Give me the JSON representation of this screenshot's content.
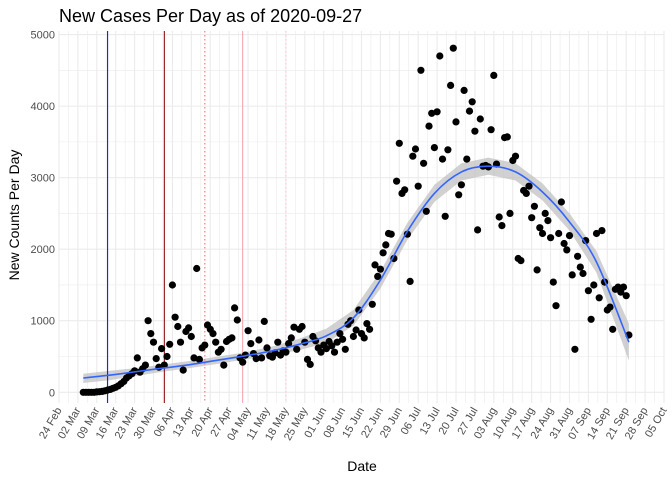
{
  "chart_data": {
    "type": "scatter",
    "title": "New Cases Per Day as of 2020-09-27",
    "xlabel": "Date",
    "ylabel": "New Counts Per Day",
    "x_tick_labels": [
      "24 Feb",
      "02 Mar",
      "09 Mar",
      "16 Mar",
      "23 Mar",
      "30 Mar",
      "06 Apr",
      "13 Apr",
      "20 Apr",
      "27 Apr",
      "04 May",
      "11 May",
      "18 May",
      "25 May",
      "01 Jun",
      "08 Jun",
      "15 Jun",
      "22 Jun",
      "29 Jun",
      "06 Jul",
      "13 Jul",
      "20 Jul",
      "27 Jul",
      "03 Aug",
      "10 Aug",
      "17 Aug",
      "24 Aug",
      "31 Aug",
      "07 Sep",
      "14 Sep",
      "21 Sep",
      "28 Sep",
      "05 Oct"
    ],
    "x_range": [
      "2020-02-24",
      "2020-10-05"
    ],
    "y_ticks": [
      0,
      1000,
      2000,
      3000,
      4000,
      5000
    ],
    "ylim": [
      -150,
      5050
    ],
    "grid": true,
    "colors": {
      "points": "#000000",
      "smooth_line": "#3366ff",
      "ribbon": "#bdbdbd",
      "line_blue": "#0000ff",
      "line_darkred": "#8b0000",
      "line_red_dotted": "#e8696b",
      "line_pink": "#f4a0a8",
      "line_pink_dotted": "#f7c6cf",
      "grid": "#ebebeb"
    },
    "vertical_lines": [
      {
        "date": "2020-03-13",
        "style": "solid",
        "color": "#0000ff"
      },
      {
        "date": "2020-04-03",
        "style": "solid",
        "color": "#8b0000"
      },
      {
        "date": "2020-04-18",
        "style": "dotted",
        "color": "#e8696b"
      },
      {
        "date": "2020-05-02",
        "style": "solid",
        "color": "#f4a0a8"
      },
      {
        "date": "2020-05-18",
        "style": "dotted",
        "color": "#f7c6cf"
      }
    ],
    "series": [
      {
        "type": "scatter",
        "points": [
          [
            "2020-03-04",
            0
          ],
          [
            "2020-03-05",
            0
          ],
          [
            "2020-03-06",
            0
          ],
          [
            "2020-03-07",
            0
          ],
          [
            "2020-03-08",
            0
          ],
          [
            "2020-03-09",
            5
          ],
          [
            "2020-03-10",
            8
          ],
          [
            "2020-03-11",
            12
          ],
          [
            "2020-03-12",
            20
          ],
          [
            "2020-03-13",
            30
          ],
          [
            "2020-03-14",
            40
          ],
          [
            "2020-03-15",
            55
          ],
          [
            "2020-03-16",
            70
          ],
          [
            "2020-03-17",
            90
          ],
          [
            "2020-03-18",
            120
          ],
          [
            "2020-03-19",
            150
          ],
          [
            "2020-03-20",
            200
          ],
          [
            "2020-03-21",
            230
          ],
          [
            "2020-03-22",
            260
          ],
          [
            "2020-03-23",
            300
          ],
          [
            "2020-03-24",
            480
          ],
          [
            "2020-03-25",
            280
          ],
          [
            "2020-03-26",
            330
          ],
          [
            "2020-03-27",
            380
          ],
          [
            "2020-03-28",
            1000
          ],
          [
            "2020-03-29",
            820
          ],
          [
            "2020-03-30",
            700
          ],
          [
            "2020-03-31",
            470
          ],
          [
            "2020-04-01",
            350
          ],
          [
            "2020-04-02",
            610
          ],
          [
            "2020-04-03",
            380
          ],
          [
            "2020-04-04",
            500
          ],
          [
            "2020-04-05",
            670
          ],
          [
            "2020-04-06",
            1500
          ],
          [
            "2020-04-07",
            1050
          ],
          [
            "2020-04-08",
            920
          ],
          [
            "2020-04-09",
            700
          ],
          [
            "2020-04-10",
            310
          ],
          [
            "2020-04-11",
            850
          ],
          [
            "2020-04-12",
            900
          ],
          [
            "2020-04-13",
            780
          ],
          [
            "2020-04-14",
            480
          ],
          [
            "2020-04-15",
            1730
          ],
          [
            "2020-04-16",
            460
          ],
          [
            "2020-04-17",
            620
          ],
          [
            "2020-04-18",
            660
          ],
          [
            "2020-04-19",
            940
          ],
          [
            "2020-04-20",
            880
          ],
          [
            "2020-04-21",
            820
          ],
          [
            "2020-04-22",
            700
          ],
          [
            "2020-04-23",
            560
          ],
          [
            "2020-04-24",
            600
          ],
          [
            "2020-04-25",
            380
          ],
          [
            "2020-04-26",
            710
          ],
          [
            "2020-04-27",
            740
          ],
          [
            "2020-04-28",
            760
          ],
          [
            "2020-04-29",
            1180
          ],
          [
            "2020-04-30",
            1010
          ],
          [
            "2020-05-01",
            480
          ],
          [
            "2020-05-02",
            420
          ],
          [
            "2020-05-03",
            520
          ],
          [
            "2020-05-04",
            860
          ],
          [
            "2020-05-05",
            680
          ],
          [
            "2020-05-06",
            540
          ],
          [
            "2020-05-07",
            470
          ],
          [
            "2020-05-08",
            730
          ],
          [
            "2020-05-09",
            480
          ],
          [
            "2020-05-10",
            990
          ],
          [
            "2020-05-11",
            620
          ],
          [
            "2020-05-12",
            510
          ],
          [
            "2020-05-13",
            490
          ],
          [
            "2020-05-14",
            550
          ],
          [
            "2020-05-15",
            700
          ],
          [
            "2020-05-16",
            520
          ],
          [
            "2020-05-17",
            580
          ],
          [
            "2020-05-18",
            560
          ],
          [
            "2020-05-19",
            680
          ],
          [
            "2020-05-20",
            760
          ],
          [
            "2020-05-21",
            910
          ],
          [
            "2020-05-22",
            600
          ],
          [
            "2020-05-23",
            880
          ],
          [
            "2020-05-24",
            920
          ],
          [
            "2020-05-25",
            700
          ],
          [
            "2020-05-26",
            460
          ],
          [
            "2020-05-27",
            390
          ],
          [
            "2020-05-28",
            780
          ],
          [
            "2020-05-29",
            720
          ],
          [
            "2020-05-30",
            620
          ],
          [
            "2020-05-31",
            560
          ],
          [
            "2020-06-01",
            660
          ],
          [
            "2020-06-02",
            610
          ],
          [
            "2020-06-03",
            710
          ],
          [
            "2020-06-04",
            650
          ],
          [
            "2020-06-05",
            560
          ],
          [
            "2020-06-06",
            700
          ],
          [
            "2020-06-07",
            820
          ],
          [
            "2020-06-08",
            740
          ],
          [
            "2020-06-09",
            600
          ],
          [
            "2020-06-10",
            950
          ],
          [
            "2020-06-11",
            1000
          ],
          [
            "2020-06-12",
            780
          ],
          [
            "2020-06-13",
            870
          ],
          [
            "2020-06-14",
            1150
          ],
          [
            "2020-06-15",
            820
          ],
          [
            "2020-06-16",
            760
          ],
          [
            "2020-06-17",
            960
          ],
          [
            "2020-06-18",
            880
          ],
          [
            "2020-06-19",
            1230
          ],
          [
            "2020-06-20",
            1780
          ],
          [
            "2020-06-21",
            1620
          ],
          [
            "2020-06-22",
            1720
          ],
          [
            "2020-06-23",
            1950
          ],
          [
            "2020-06-24",
            2060
          ],
          [
            "2020-06-25",
            2220
          ],
          [
            "2020-06-26",
            2210
          ],
          [
            "2020-06-27",
            1870
          ],
          [
            "2020-06-28",
            2950
          ],
          [
            "2020-06-29",
            3480
          ],
          [
            "2020-06-30",
            2780
          ],
          [
            "2020-07-01",
            2830
          ],
          [
            "2020-07-02",
            2210
          ],
          [
            "2020-07-03",
            1550
          ],
          [
            "2020-07-04",
            3300
          ],
          [
            "2020-07-05",
            3400
          ],
          [
            "2020-07-06",
            2880
          ],
          [
            "2020-07-07",
            4500
          ],
          [
            "2020-07-08",
            3200
          ],
          [
            "2020-07-09",
            2530
          ],
          [
            "2020-07-10",
            3720
          ],
          [
            "2020-07-11",
            3900
          ],
          [
            "2020-07-12",
            3420
          ],
          [
            "2020-07-13",
            3920
          ],
          [
            "2020-07-14",
            4700
          ],
          [
            "2020-07-15",
            3260
          ],
          [
            "2020-07-16",
            2460
          ],
          [
            "2020-07-17",
            3390
          ],
          [
            "2020-07-18",
            4290
          ],
          [
            "2020-07-19",
            4810
          ],
          [
            "2020-07-20",
            3780
          ],
          [
            "2020-07-21",
            2760
          ],
          [
            "2020-07-22",
            2900
          ],
          [
            "2020-07-23",
            4220
          ],
          [
            "2020-07-24",
            3260
          ],
          [
            "2020-07-25",
            3930
          ],
          [
            "2020-07-26",
            4060
          ],
          [
            "2020-07-27",
            3650
          ],
          [
            "2020-07-28",
            2270
          ],
          [
            "2020-07-29",
            3820
          ],
          [
            "2020-07-30",
            3160
          ],
          [
            "2020-07-31",
            3170
          ],
          [
            "2020-08-01",
            3150
          ],
          [
            "2020-08-02",
            3670
          ],
          [
            "2020-08-03",
            4430
          ],
          [
            "2020-08-04",
            3190
          ],
          [
            "2020-08-05",
            2450
          ],
          [
            "2020-08-06",
            2330
          ],
          [
            "2020-08-07",
            3560
          ],
          [
            "2020-08-08",
            3570
          ],
          [
            "2020-08-09",
            2500
          ],
          [
            "2020-08-10",
            3240
          ],
          [
            "2020-08-11",
            3300
          ],
          [
            "2020-08-12",
            1870
          ],
          [
            "2020-08-13",
            1840
          ],
          [
            "2020-08-14",
            2820
          ],
          [
            "2020-08-15",
            2780
          ],
          [
            "2020-08-16",
            2880
          ],
          [
            "2020-08-17",
            2440
          ],
          [
            "2020-08-18",
            2600
          ],
          [
            "2020-08-19",
            1710
          ],
          [
            "2020-08-20",
            2300
          ],
          [
            "2020-08-21",
            2220
          ],
          [
            "2020-08-22",
            2500
          ],
          [
            "2020-08-23",
            2400
          ],
          [
            "2020-08-24",
            2160
          ],
          [
            "2020-08-25",
            1540
          ],
          [
            "2020-08-26",
            1210
          ],
          [
            "2020-08-27",
            2220
          ],
          [
            "2020-08-28",
            2660
          ],
          [
            "2020-08-29",
            2080
          ],
          [
            "2020-08-30",
            1990
          ],
          [
            "2020-08-31",
            2190
          ],
          [
            "2020-09-01",
            1640
          ],
          [
            "2020-09-02",
            600
          ],
          [
            "2020-09-03",
            1900
          ],
          [
            "2020-09-04",
            1750
          ],
          [
            "2020-09-05",
            1660
          ],
          [
            "2020-09-06",
            2120
          ],
          [
            "2020-09-07",
            1420
          ],
          [
            "2020-09-08",
            1020
          ],
          [
            "2020-09-09",
            1500
          ],
          [
            "2020-09-10",
            2220
          ],
          [
            "2020-09-11",
            1320
          ],
          [
            "2020-09-12",
            2260
          ],
          [
            "2020-09-13",
            1540
          ],
          [
            "2020-09-14",
            1150
          ],
          [
            "2020-09-15",
            1190
          ],
          [
            "2020-09-16",
            880
          ],
          [
            "2020-09-17",
            1440
          ],
          [
            "2020-09-18",
            1470
          ],
          [
            "2020-09-19",
            1400
          ],
          [
            "2020-09-20",
            1470
          ],
          [
            "2020-09-21",
            1350
          ],
          [
            "2020-09-22",
            800
          ]
        ]
      },
      {
        "type": "smooth",
        "points": [
          [
            "2020-03-04",
            200,
            130,
            260
          ],
          [
            "2020-03-14",
            240,
            170,
            300
          ],
          [
            "2020-03-24",
            290,
            230,
            340
          ],
          [
            "2020-04-03",
            340,
            290,
            390
          ],
          [
            "2020-04-13",
            390,
            340,
            440
          ],
          [
            "2020-04-23",
            450,
            400,
            500
          ],
          [
            "2020-05-03",
            510,
            460,
            560
          ],
          [
            "2020-05-13",
            580,
            520,
            640
          ],
          [
            "2020-05-23",
            670,
            590,
            750
          ],
          [
            "2020-06-02",
            790,
            690,
            890
          ],
          [
            "2020-06-12",
            1040,
            930,
            1150
          ],
          [
            "2020-06-22",
            1570,
            1450,
            1690
          ],
          [
            "2020-07-02",
            2250,
            2130,
            2370
          ],
          [
            "2020-07-12",
            2780,
            2660,
            2900
          ],
          [
            "2020-07-22",
            3080,
            2960,
            3200
          ],
          [
            "2020-08-01",
            3160,
            3040,
            3280
          ],
          [
            "2020-08-11",
            3080,
            2960,
            3200
          ],
          [
            "2020-08-21",
            2800,
            2680,
            2920
          ],
          [
            "2020-08-31",
            2380,
            2260,
            2500
          ],
          [
            "2020-09-10",
            1820,
            1670,
            1970
          ],
          [
            "2020-09-22",
            700,
            440,
            960
          ]
        ]
      }
    ]
  }
}
